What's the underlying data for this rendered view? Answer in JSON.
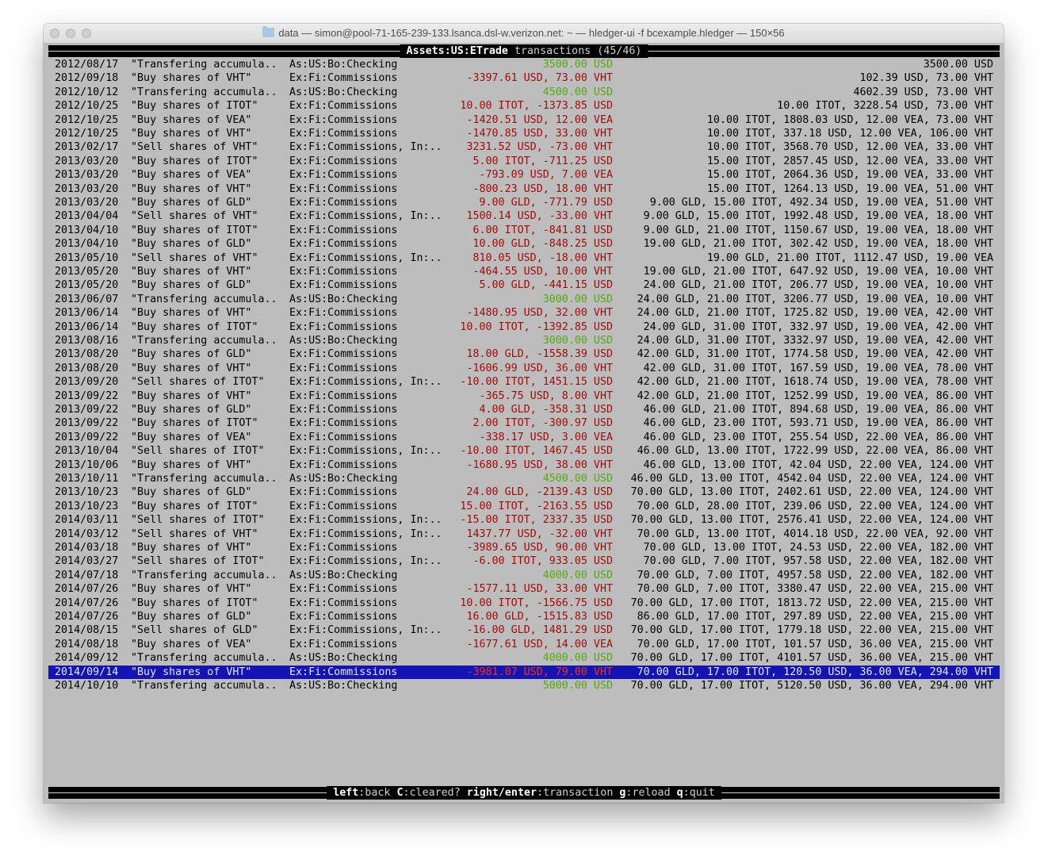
{
  "window": {
    "title": "data — simon@pool-71-165-239-133.lsanca.dsl-w.verizon.net: ~ — hledger-ui -f bcexample.hledger — 150×56",
    "folder_icon": "folder-icon"
  },
  "header": {
    "account": "Assets:US:ETrade",
    "label": "transactions (45/46)"
  },
  "colors": {
    "background": "#bdbdbd",
    "negative_or_trade": "#990d0d",
    "deposit": "#5aa41a",
    "selection": "#1414b4"
  },
  "selected_index": 44,
  "rows": [
    {
      "date": "2012/08/17",
      "desc": "\"Transfering accumula..",
      "acct": "As:US:Bo:Checking",
      "change": "3500.00 USD",
      "balance": "3500.00 USD",
      "kind": "deposit"
    },
    {
      "date": "2012/09/18",
      "desc": "\"Buy shares of VHT\"",
      "acct": "Ex:Fi:Commissions",
      "change": "-3397.61 USD, 73.00 VHT",
      "balance": "102.39 USD, 73.00 VHT",
      "kind": "trade"
    },
    {
      "date": "2012/10/12",
      "desc": "\"Transfering accumula..",
      "acct": "As:US:Bo:Checking",
      "change": "4500.00 USD",
      "balance": "4602.39 USD, 73.00 VHT",
      "kind": "deposit"
    },
    {
      "date": "2012/10/25",
      "desc": "\"Buy shares of ITOT\"",
      "acct": "Ex:Fi:Commissions",
      "change": "10.00 ITOT, -1373.85 USD",
      "balance": "10.00 ITOT, 3228.54 USD, 73.00 VHT",
      "kind": "trade"
    },
    {
      "date": "2012/10/25",
      "desc": "\"Buy shares of VEA\"",
      "acct": "Ex:Fi:Commissions",
      "change": "-1420.51 USD, 12.00 VEA",
      "balance": "10.00 ITOT, 1808.03 USD, 12.00 VEA, 73.00 VHT",
      "kind": "trade"
    },
    {
      "date": "2012/10/25",
      "desc": "\"Buy shares of VHT\"",
      "acct": "Ex:Fi:Commissions",
      "change": "-1470.85 USD, 33.00 VHT",
      "balance": "10.00 ITOT, 337.18 USD, 12.00 VEA, 106.00 VHT",
      "kind": "trade"
    },
    {
      "date": "2013/02/17",
      "desc": "\"Sell shares of VHT\"",
      "acct": "Ex:Fi:Commissions, In:..",
      "change": "3231.52 USD, -73.00 VHT",
      "balance": "10.00 ITOT, 3568.70 USD, 12.00 VEA, 33.00 VHT",
      "kind": "trade"
    },
    {
      "date": "2013/03/20",
      "desc": "\"Buy shares of ITOT\"",
      "acct": "Ex:Fi:Commissions",
      "change": "5.00 ITOT, -711.25 USD",
      "balance": "15.00 ITOT, 2857.45 USD, 12.00 VEA, 33.00 VHT",
      "kind": "trade"
    },
    {
      "date": "2013/03/20",
      "desc": "\"Buy shares of VEA\"",
      "acct": "Ex:Fi:Commissions",
      "change": "-793.09 USD, 7.00 VEA",
      "balance": "15.00 ITOT, 2064.36 USD, 19.00 VEA, 33.00 VHT",
      "kind": "trade"
    },
    {
      "date": "2013/03/20",
      "desc": "\"Buy shares of VHT\"",
      "acct": "Ex:Fi:Commissions",
      "change": "-800.23 USD, 18.00 VHT",
      "balance": "15.00 ITOT, 1264.13 USD, 19.00 VEA, 51.00 VHT",
      "kind": "trade"
    },
    {
      "date": "2013/03/20",
      "desc": "\"Buy shares of GLD\"",
      "acct": "Ex:Fi:Commissions",
      "change": "9.00 GLD, -771.79 USD",
      "balance": "9.00 GLD, 15.00 ITOT, 492.34 USD, 19.00 VEA, 51.00 VHT",
      "kind": "trade"
    },
    {
      "date": "2013/04/04",
      "desc": "\"Sell shares of VHT\"",
      "acct": "Ex:Fi:Commissions, In:..",
      "change": "1500.14 USD, -33.00 VHT",
      "balance": "9.00 GLD, 15.00 ITOT, 1992.48 USD, 19.00 VEA, 18.00 VHT",
      "kind": "trade"
    },
    {
      "date": "2013/04/10",
      "desc": "\"Buy shares of ITOT\"",
      "acct": "Ex:Fi:Commissions",
      "change": "6.00 ITOT, -841.81 USD",
      "balance": "9.00 GLD, 21.00 ITOT, 1150.67 USD, 19.00 VEA, 18.00 VHT",
      "kind": "trade"
    },
    {
      "date": "2013/04/10",
      "desc": "\"Buy shares of GLD\"",
      "acct": "Ex:Fi:Commissions",
      "change": "10.00 GLD, -848.25 USD",
      "balance": "19.00 GLD, 21.00 ITOT, 302.42 USD, 19.00 VEA, 18.00 VHT",
      "kind": "trade"
    },
    {
      "date": "2013/05/10",
      "desc": "\"Sell shares of VHT\"",
      "acct": "Ex:Fi:Commissions, In:..",
      "change": "810.05 USD, -18.00 VHT",
      "balance": "19.00 GLD, 21.00 ITOT, 1112.47 USD, 19.00 VEA",
      "kind": "trade"
    },
    {
      "date": "2013/05/20",
      "desc": "\"Buy shares of VHT\"",
      "acct": "Ex:Fi:Commissions",
      "change": "-464.55 USD, 10.00 VHT",
      "balance": "19.00 GLD, 21.00 ITOT, 647.92 USD, 19.00 VEA, 10.00 VHT",
      "kind": "trade"
    },
    {
      "date": "2013/05/20",
      "desc": "\"Buy shares of GLD\"",
      "acct": "Ex:Fi:Commissions",
      "change": "5.00 GLD, -441.15 USD",
      "balance": "24.00 GLD, 21.00 ITOT, 206.77 USD, 19.00 VEA, 10.00 VHT",
      "kind": "trade"
    },
    {
      "date": "2013/06/07",
      "desc": "\"Transfering accumula..",
      "acct": "As:US:Bo:Checking",
      "change": "3000.00 USD",
      "balance": "24.00 GLD, 21.00 ITOT, 3206.77 USD, 19.00 VEA, 10.00 VHT",
      "kind": "deposit"
    },
    {
      "date": "2013/06/14",
      "desc": "\"Buy shares of VHT\"",
      "acct": "Ex:Fi:Commissions",
      "change": "-1480.95 USD, 32.00 VHT",
      "balance": "24.00 GLD, 21.00 ITOT, 1725.82 USD, 19.00 VEA, 42.00 VHT",
      "kind": "trade"
    },
    {
      "date": "2013/06/14",
      "desc": "\"Buy shares of ITOT\"",
      "acct": "Ex:Fi:Commissions",
      "change": "10.00 ITOT, -1392.85 USD",
      "balance": "24.00 GLD, 31.00 ITOT, 332.97 USD, 19.00 VEA, 42.00 VHT",
      "kind": "trade"
    },
    {
      "date": "2013/08/16",
      "desc": "\"Transfering accumula..",
      "acct": "As:US:Bo:Checking",
      "change": "3000.00 USD",
      "balance": "24.00 GLD, 31.00 ITOT, 3332.97 USD, 19.00 VEA, 42.00 VHT",
      "kind": "deposit"
    },
    {
      "date": "2013/08/20",
      "desc": "\"Buy shares of GLD\"",
      "acct": "Ex:Fi:Commissions",
      "change": "18.00 GLD, -1558.39 USD",
      "balance": "42.00 GLD, 31.00 ITOT, 1774.58 USD, 19.00 VEA, 42.00 VHT",
      "kind": "trade"
    },
    {
      "date": "2013/08/20",
      "desc": "\"Buy shares of VHT\"",
      "acct": "Ex:Fi:Commissions",
      "change": "-1606.99 USD, 36.00 VHT",
      "balance": "42.00 GLD, 31.00 ITOT, 167.59 USD, 19.00 VEA, 78.00 VHT",
      "kind": "trade"
    },
    {
      "date": "2013/09/20",
      "desc": "\"Sell shares of ITOT\"",
      "acct": "Ex:Fi:Commissions, In:..",
      "change": "-10.00 ITOT, 1451.15 USD",
      "balance": "42.00 GLD, 21.00 ITOT, 1618.74 USD, 19.00 VEA, 78.00 VHT",
      "kind": "trade"
    },
    {
      "date": "2013/09/22",
      "desc": "\"Buy shares of VHT\"",
      "acct": "Ex:Fi:Commissions",
      "change": "-365.75 USD, 8.00 VHT",
      "balance": "42.00 GLD, 21.00 ITOT, 1252.99 USD, 19.00 VEA, 86.00 VHT",
      "kind": "trade"
    },
    {
      "date": "2013/09/22",
      "desc": "\"Buy shares of GLD\"",
      "acct": "Ex:Fi:Commissions",
      "change": "4.00 GLD, -358.31 USD",
      "balance": "46.00 GLD, 21.00 ITOT, 894.68 USD, 19.00 VEA, 86.00 VHT",
      "kind": "trade"
    },
    {
      "date": "2013/09/22",
      "desc": "\"Buy shares of ITOT\"",
      "acct": "Ex:Fi:Commissions",
      "change": "2.00 ITOT, -300.97 USD",
      "balance": "46.00 GLD, 23.00 ITOT, 593.71 USD, 19.00 VEA, 86.00 VHT",
      "kind": "trade"
    },
    {
      "date": "2013/09/22",
      "desc": "\"Buy shares of VEA\"",
      "acct": "Ex:Fi:Commissions",
      "change": "-338.17 USD, 3.00 VEA",
      "balance": "46.00 GLD, 23.00 ITOT, 255.54 USD, 22.00 VEA, 86.00 VHT",
      "kind": "trade"
    },
    {
      "date": "2013/10/04",
      "desc": "\"Sell shares of ITOT\"",
      "acct": "Ex:Fi:Commissions, In:..",
      "change": "-10.00 ITOT, 1467.45 USD",
      "balance": "46.00 GLD, 13.00 ITOT, 1722.99 USD, 22.00 VEA, 86.00 VHT",
      "kind": "trade"
    },
    {
      "date": "2013/10/06",
      "desc": "\"Buy shares of VHT\"",
      "acct": "Ex:Fi:Commissions",
      "change": "-1680.95 USD, 38.00 VHT",
      "balance": "46.00 GLD, 13.00 ITOT, 42.04 USD, 22.00 VEA, 124.00 VHT",
      "kind": "trade"
    },
    {
      "date": "2013/10/11",
      "desc": "\"Transfering accumula..",
      "acct": "As:US:Bo:Checking",
      "change": "4500.00 USD",
      "balance": "46.00 GLD, 13.00 ITOT, 4542.04 USD, 22.00 VEA, 124.00 VHT",
      "kind": "deposit"
    },
    {
      "date": "2013/10/23",
      "desc": "\"Buy shares of GLD\"",
      "acct": "Ex:Fi:Commissions",
      "change": "24.00 GLD, -2139.43 USD",
      "balance": "70.00 GLD, 13.00 ITOT, 2402.61 USD, 22.00 VEA, 124.00 VHT",
      "kind": "trade"
    },
    {
      "date": "2013/10/23",
      "desc": "\"Buy shares of ITOT\"",
      "acct": "Ex:Fi:Commissions",
      "change": "15.00 ITOT, -2163.55 USD",
      "balance": "70.00 GLD, 28.00 ITOT, 239.06 USD, 22.00 VEA, 124.00 VHT",
      "kind": "trade"
    },
    {
      "date": "2014/03/11",
      "desc": "\"Sell shares of ITOT\"",
      "acct": "Ex:Fi:Commissions, In:..",
      "change": "-15.00 ITOT, 2337.35 USD",
      "balance": "70.00 GLD, 13.00 ITOT, 2576.41 USD, 22.00 VEA, 124.00 VHT",
      "kind": "trade"
    },
    {
      "date": "2014/03/12",
      "desc": "\"Sell shares of VHT\"",
      "acct": "Ex:Fi:Commissions, In:..",
      "change": "1437.77 USD, -32.00 VHT",
      "balance": "70.00 GLD, 13.00 ITOT, 4014.18 USD, 22.00 VEA, 92.00 VHT",
      "kind": "trade"
    },
    {
      "date": "2014/03/18",
      "desc": "\"Buy shares of VHT\"",
      "acct": "Ex:Fi:Commissions",
      "change": "-3989.65 USD, 90.00 VHT",
      "balance": "70.00 GLD, 13.00 ITOT, 24.53 USD, 22.00 VEA, 182.00 VHT",
      "kind": "trade"
    },
    {
      "date": "2014/03/27",
      "desc": "\"Sell shares of ITOT\"",
      "acct": "Ex:Fi:Commissions, In:..",
      "change": "-6.00 ITOT, 933.05 USD",
      "balance": "70.00 GLD, 7.00 ITOT, 957.58 USD, 22.00 VEA, 182.00 VHT",
      "kind": "trade"
    },
    {
      "date": "2014/07/18",
      "desc": "\"Transfering accumula..",
      "acct": "As:US:Bo:Checking",
      "change": "4000.00 USD",
      "balance": "70.00 GLD, 7.00 ITOT, 4957.58 USD, 22.00 VEA, 182.00 VHT",
      "kind": "deposit"
    },
    {
      "date": "2014/07/26",
      "desc": "\"Buy shares of VHT\"",
      "acct": "Ex:Fi:Commissions",
      "change": "-1577.11 USD, 33.00 VHT",
      "balance": "70.00 GLD, 7.00 ITOT, 3380.47 USD, 22.00 VEA, 215.00 VHT",
      "kind": "trade"
    },
    {
      "date": "2014/07/26",
      "desc": "\"Buy shares of ITOT\"",
      "acct": "Ex:Fi:Commissions",
      "change": "10.00 ITOT, -1566.75 USD",
      "balance": "70.00 GLD, 17.00 ITOT, 1813.72 USD, 22.00 VEA, 215.00 VHT",
      "kind": "trade"
    },
    {
      "date": "2014/07/26",
      "desc": "\"Buy shares of GLD\"",
      "acct": "Ex:Fi:Commissions",
      "change": "16.00 GLD, -1515.83 USD",
      "balance": "86.00 GLD, 17.00 ITOT, 297.89 USD, 22.00 VEA, 215.00 VHT",
      "kind": "trade"
    },
    {
      "date": "2014/08/15",
      "desc": "\"Sell shares of GLD\"",
      "acct": "Ex:Fi:Commissions, In:..",
      "change": "-16.00 GLD, 1481.29 USD",
      "balance": "70.00 GLD, 17.00 ITOT, 1779.18 USD, 22.00 VEA, 215.00 VHT",
      "kind": "trade"
    },
    {
      "date": "2014/08/18",
      "desc": "\"Buy shares of VEA\"",
      "acct": "Ex:Fi:Commissions",
      "change": "-1677.61 USD, 14.00 VEA",
      "balance": "70.00 GLD, 17.00 ITOT, 101.57 USD, 36.00 VEA, 215.00 VHT",
      "kind": "trade"
    },
    {
      "date": "2014/09/12",
      "desc": "\"Transfering accumula..",
      "acct": "As:US:Bo:Checking",
      "change": "4000.00 USD",
      "balance": "70.00 GLD, 17.00 ITOT, 4101.57 USD, 36.00 VEA, 215.00 VHT",
      "kind": "deposit"
    },
    {
      "date": "2014/09/14",
      "desc": "\"Buy shares of VHT\"",
      "acct": "Ex:Fi:Commissions",
      "change": "-3981.07 USD, 79.00 VHT",
      "balance": "70.00 GLD, 17.00 ITOT, 120.50 USD, 36.00 VEA, 294.00 VHT",
      "kind": "trade"
    },
    {
      "date": "2014/10/10",
      "desc": "\"Transfering accumula..",
      "acct": "As:US:Bo:Checking",
      "change": "5000.00 USD",
      "balance": "70.00 GLD, 17.00 ITOT, 5120.50 USD, 36.00 VEA, 294.00 VHT",
      "kind": "deposit"
    }
  ],
  "footer": {
    "keys": [
      {
        "key": "left",
        "label": "back"
      },
      {
        "key": "C",
        "label": "cleared?"
      },
      {
        "key": "right/enter",
        "label": "transaction"
      },
      {
        "key": "g",
        "label": "reload"
      },
      {
        "key": "q",
        "label": "quit"
      }
    ]
  }
}
